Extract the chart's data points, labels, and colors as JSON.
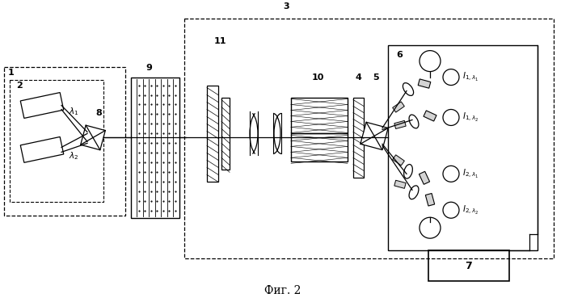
{
  "bg_color": "#ffffff",
  "line_color": "#000000",
  "title": "Фиг. 2",
  "title_fontsize": 10,
  "fig_width": 6.99,
  "fig_height": 3.74,
  "dpi": 100
}
